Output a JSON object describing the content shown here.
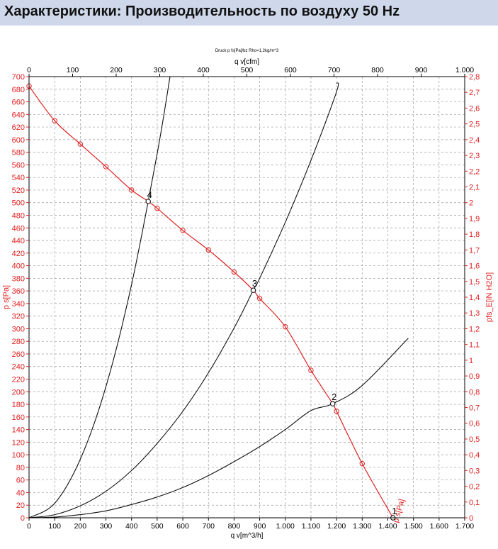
{
  "title": "Характеристики: Производительность по воздуху 50 Hz",
  "chart_data": {
    "type": "line",
    "caption": "Druck p fs[Pa]/bz Rho=1,2kg/m^3",
    "xlabel": "q v[m^3/h]",
    "top_xlabel": "q v[cfm]",
    "ylabel": "p s[Pa]",
    "right_ylabel": "pfs_E[iN H2O]",
    "xlim": [
      0,
      1700
    ],
    "ylim": [
      0,
      700
    ],
    "top_xlim": [
      0,
      1000
    ],
    "right_ylim": [
      0,
      2.8
    ],
    "x_ticks": [
      "0",
      "100",
      "200",
      "300",
      "400",
      "500",
      "600",
      "700",
      "800",
      "900",
      "1.000",
      "1.100",
      "1.200",
      "1.300",
      "1.400",
      "1.500",
      "1.600",
      "1.700"
    ],
    "x_tick_values": [
      0,
      100,
      200,
      300,
      400,
      500,
      600,
      700,
      800,
      900,
      1000,
      1100,
      1200,
      1300,
      1400,
      1500,
      1600,
      1700
    ],
    "top_x_ticks": [
      "0",
      "100",
      "200",
      "300",
      "400",
      "500",
      "600",
      "700",
      "800",
      "900",
      "1.000"
    ],
    "top_x_tick_values": [
      0,
      100,
      200,
      300,
      400,
      500,
      600,
      700,
      800,
      900,
      1000
    ],
    "y_ticks": [
      "0",
      "20",
      "40",
      "60",
      "80",
      "100",
      "120",
      "140",
      "160",
      "180",
      "200",
      "220",
      "240",
      "260",
      "280",
      "300",
      "320",
      "340",
      "360",
      "380",
      "400",
      "420",
      "440",
      "460",
      "480",
      "500",
      "520",
      "540",
      "560",
      "580",
      "600",
      "620",
      "640",
      "660",
      "680",
      "700"
    ],
    "y_tick_values": [
      0,
      20,
      40,
      60,
      80,
      100,
      120,
      140,
      160,
      180,
      200,
      220,
      240,
      260,
      280,
      300,
      320,
      340,
      360,
      380,
      400,
      420,
      440,
      460,
      480,
      500,
      520,
      540,
      560,
      580,
      600,
      620,
      640,
      660,
      680,
      700
    ],
    "right_y_ticks": [
      "0",
      "0,1",
      "0,2",
      "0,3",
      "0,4",
      "0,5",
      "0,6",
      "0,7",
      "0,8",
      "0,9",
      "1",
      "1,1",
      "1,2",
      "1,3",
      "1,4",
      "1,5",
      "1,6",
      "1,7",
      "1,8",
      "1,9",
      "2",
      "2,1",
      "2,2",
      "2,3",
      "2,4",
      "2,5",
      "2,6",
      "2,7",
      "2,8"
    ],
    "right_y_tick_values": [
      0,
      0.1,
      0.2,
      0.3,
      0.4,
      0.5,
      0.6,
      0.7,
      0.8,
      0.9,
      1,
      1.1,
      1.2,
      1.3,
      1.4,
      1.5,
      1.6,
      1.7,
      1.8,
      1.9,
      2,
      2.1,
      2.2,
      2.3,
      2.4,
      2.5,
      2.6,
      2.7,
      2.8
    ],
    "grid": true,
    "fan_curve": {
      "name": "p s[Pa]",
      "color": "#e02020",
      "x": [
        0,
        100,
        200,
        300,
        400,
        465,
        500,
        600,
        700,
        800,
        875,
        900,
        1000,
        1100,
        1185,
        1200,
        1300,
        1420
      ],
      "y": [
        685,
        630,
        593,
        557,
        520,
        502,
        491,
        456,
        425,
        390,
        361,
        348,
        303,
        234,
        181,
        169,
        86,
        0
      ],
      "markers_x": [
        0,
        100,
        200,
        300,
        400,
        500,
        600,
        700,
        800,
        900,
        1000,
        1100,
        1200,
        1300
      ],
      "markers_y": [
        685,
        630,
        593,
        557,
        520,
        491,
        456,
        425,
        390,
        348,
        303,
        234,
        169,
        86
      ]
    },
    "system_curves": [
      {
        "color": "#111111",
        "x": [
          0,
          100,
          200,
          300,
          400,
          500,
          550
        ],
        "y": [
          0,
          23,
          93,
          208,
          370,
          578,
          700
        ]
      },
      {
        "color": "#111111",
        "x": [
          0,
          100,
          200,
          300,
          400,
          500,
          600,
          700,
          800,
          875,
          900,
          1000,
          1100,
          1200,
          1200
        ],
        "y": [
          0,
          5,
          19,
          42,
          75,
          118,
          169,
          230,
          301,
          361,
          380,
          469,
          567,
          676,
          690
        ]
      },
      {
        "color": "#111111",
        "x": [
          0,
          100,
          200,
          300,
          400,
          500,
          600,
          700,
          800,
          900,
          1000,
          1100,
          1185,
          1300,
          1480
        ],
        "y": [
          0,
          1,
          5,
          11,
          21,
          33,
          48,
          67,
          89,
          113,
          140,
          170,
          181,
          210,
          285
        ]
      }
    ],
    "operating_points": [
      {
        "label": "1",
        "x": 1420,
        "y": 0
      },
      {
        "label": "2",
        "x": 1185,
        "y": 181
      },
      {
        "label": "3",
        "x": 875,
        "y": 361
      },
      {
        "label": "4",
        "x": 465,
        "y": 502
      }
    ],
    "curve_label": {
      "text": "p s[Pa]",
      "x": 1430,
      "y": 10
    }
  }
}
